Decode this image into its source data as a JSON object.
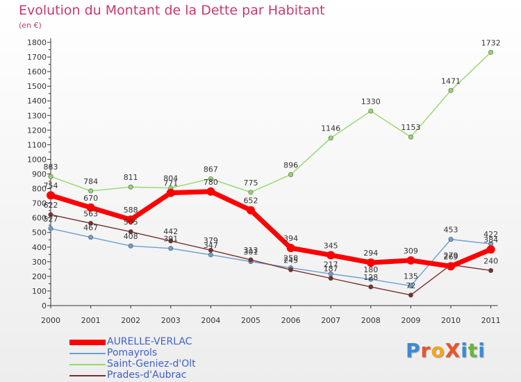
{
  "title": "Evolution du Montant de la Dette par Habitant",
  "subtitle": "(en €)",
  "logo": {
    "text": "ProXiti",
    "colors": [
      "#3a8ad6",
      "#e8552a",
      "#f2a71c",
      "#e8552a",
      "#3a8ad6",
      "#6db33f",
      "#3a8ad6"
    ]
  },
  "chart_data": {
    "type": "line",
    "x": [
      "2000",
      "2001",
      "2002",
      "2003",
      "2004",
      "2005",
      "2006",
      "2007",
      "2008",
      "2009",
      "2010",
      "2011"
    ],
    "ylim": [
      0,
      1800
    ],
    "yticks": [
      0,
      100,
      200,
      300,
      400,
      500,
      600,
      700,
      800,
      900,
      1000,
      1100,
      1200,
      1300,
      1400,
      1500,
      1600,
      1700,
      1800
    ],
    "grid": false,
    "legend_position": "bottom-left",
    "series": [
      {
        "name": "AURELLE-VERLAC",
        "color": "#ff0000",
        "values": [
          754,
          670,
          588,
          771,
          780,
          652,
          394,
          345,
          294,
          309,
          269,
          384
        ]
      },
      {
        "name": "Pomayrols",
        "color": "#6b9fd3",
        "values": [
          527,
          467,
          408,
          391,
          347,
          301,
          258,
          217,
          180,
          135,
          453,
          422
        ]
      },
      {
        "name": "Saint-Geniez-d'Olt",
        "color": "#93d86b",
        "values": [
          883,
          784,
          811,
          804,
          867,
          775,
          896,
          1146,
          1330,
          1153,
          1471,
          1732
        ]
      },
      {
        "name": "Prades-d'Aubrac",
        "color": "#7a2e2e",
        "values": [
          622,
          563,
          505,
          442,
          379,
          313,
          245,
          187,
          128,
          72,
          279,
          240
        ]
      }
    ]
  }
}
